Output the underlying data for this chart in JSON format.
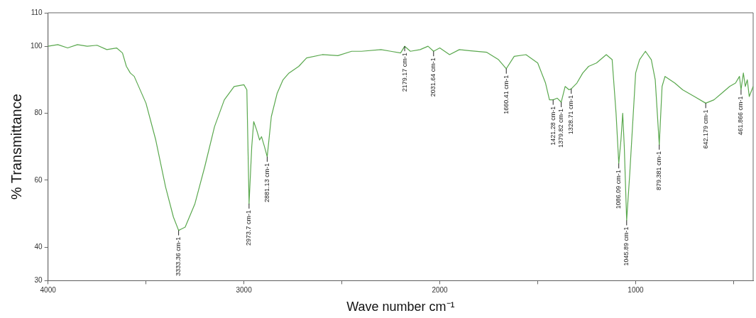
{
  "chart_data": {
    "type": "line",
    "xlabel": "Wave number cm⁻¹",
    "ylabel": "% Transmittance",
    "x": [
      4000,
      3950,
      3900,
      3850,
      3800,
      3750,
      3700,
      3650,
      3620,
      3600,
      3580,
      3560,
      3500,
      3450,
      3400,
      3360,
      3333.36,
      3300,
      3250,
      3200,
      3150,
      3100,
      3050,
      3000,
      2985,
      2973.7,
      2960,
      2950,
      2935,
      2920,
      2910,
      2895,
      2881.13,
      2860,
      2830,
      2800,
      2770,
      2720,
      2680,
      2600,
      2520,
      2450,
      2400,
      2300,
      2250,
      2200,
      2179.17,
      2150,
      2100,
      2060,
      2031.64,
      2000,
      1950,
      1900,
      1850,
      1760,
      1700,
      1660.41,
      1620,
      1560,
      1500,
      1460,
      1440,
      1421.28,
      1400,
      1379.82,
      1360,
      1340,
      1328.71,
      1300,
      1270,
      1240,
      1200,
      1150,
      1120,
      1100,
      1086.09,
      1075,
      1066,
      1058,
      1045.89,
      1030,
      1000,
      980,
      950,
      920,
      900,
      879.381,
      865,
      850,
      800,
      760,
      700,
      642.179,
      600,
      560,
      520,
      490,
      470,
      461.866,
      450,
      440,
      430,
      420,
      400
    ],
    "series": [
      {
        "color": "#5aa84e",
        "values": [
          100,
          100.5,
          99.5,
          100.5,
          100,
          100.3,
          99,
          99.5,
          98,
          94,
          92,
          91,
          83,
          72,
          58,
          49,
          45,
          46,
          53,
          64,
          76,
          84,
          88,
          88.5,
          87,
          53,
          70,
          77.5,
          75,
          72,
          73,
          70,
          67,
          79,
          86,
          90,
          92,
          94,
          96.5,
          97.5,
          97.2,
          98.5,
          98.5,
          99,
          98.5,
          98,
          100,
          98.5,
          99,
          100,
          98.5,
          99.5,
          97.5,
          99,
          98.7,
          98.2,
          96,
          93.3,
          97,
          97.5,
          95,
          89,
          84,
          84,
          84.5,
          83.3,
          88,
          87,
          87.3,
          89,
          92,
          94,
          95,
          97.5,
          96,
          80,
          65,
          72,
          80,
          70,
          48,
          62,
          92,
          96,
          98.5,
          96,
          90,
          70.6,
          88,
          91,
          89,
          87,
          85,
          83,
          84,
          86,
          88,
          89,
          91,
          87,
          92,
          88,
          90,
          85,
          88
        ]
      }
    ],
    "xlim": [
      4000,
      400
    ],
    "xticks": [
      4000,
      {
        "value": 3500,
        "label": null
      },
      3000,
      {
        "value": 2500,
        "label": null
      },
      2000,
      {
        "value": 1500,
        "label": null
      },
      1000,
      {
        "value": 500,
        "label": null
      }
    ],
    "ylim": [
      30,
      110
    ],
    "yticks": [
      30,
      40,
      60,
      80,
      100,
      110
    ],
    "grid": false,
    "legend": false,
    "marker": "none",
    "line_style": "solid",
    "annotations": [
      {
        "text": "3333.36 cm-1",
        "x": 3333.36,
        "y": 45
      },
      {
        "text": "2973.7 cm-1",
        "x": 2973.7,
        "y": 53
      },
      {
        "text": "2881.13 cm-1",
        "x": 2881.13,
        "y": 67
      },
      {
        "text": "2179.17 cm-1",
        "x": 2179.17,
        "y": 100
      },
      {
        "text": "2031.64 cm-1",
        "x": 2031.64,
        "y": 98.5
      },
      {
        "text": "1660.41 cm-1",
        "x": 1660.41,
        "y": 93.3
      },
      {
        "text": "1421.28 cm-1",
        "x": 1421.28,
        "y": 84
      },
      {
        "text": "1379.82 cm-1",
        "x": 1379.82,
        "y": 83.3
      },
      {
        "text": "1328.71 cm-1",
        "x": 1328.71,
        "y": 87.3
      },
      {
        "text": "1086.09 cm-1",
        "x": 1086.09,
        "y": 65
      },
      {
        "text": "1045.89 cm-1",
        "x": 1045.89,
        "y": 48
      },
      {
        "text": "879.381 cm-1",
        "x": 879.381,
        "y": 70.6
      },
      {
        "text": "642.179 cm-1",
        "x": 642.179,
        "y": 83
      },
      {
        "text": "461.866 cm-1",
        "x": 461.866,
        "y": 87
      }
    ]
  }
}
